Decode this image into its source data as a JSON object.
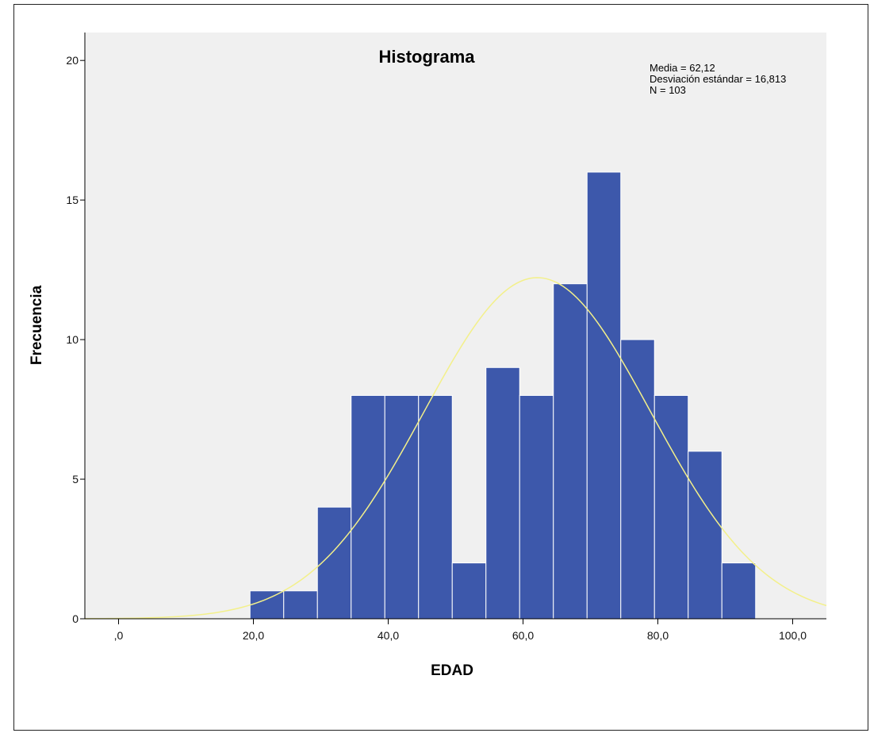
{
  "chart_data": {
    "type": "bar",
    "subtype": "histogram",
    "title": "Histograma",
    "xlabel": "EDAD",
    "ylabel": "Frecuencia",
    "xlim": [
      -5,
      105
    ],
    "ylim": [
      0,
      21
    ],
    "x_ticks": [
      0,
      20,
      40,
      60,
      80,
      100
    ],
    "x_tick_labels": [
      ",0",
      "20,0",
      "40,0",
      "60,0",
      "80,0",
      "100,0"
    ],
    "y_ticks": [
      0,
      5,
      10,
      15,
      20
    ],
    "y_tick_labels": [
      "0",
      "5",
      "10",
      "15",
      "20"
    ],
    "bins": [
      {
        "start": 19.5,
        "end": 24.5,
        "count": 1
      },
      {
        "start": 24.5,
        "end": 29.5,
        "count": 1
      },
      {
        "start": 29.5,
        "end": 34.5,
        "count": 4
      },
      {
        "start": 34.5,
        "end": 39.5,
        "count": 8
      },
      {
        "start": 39.5,
        "end": 44.5,
        "count": 8
      },
      {
        "start": 44.5,
        "end": 49.5,
        "count": 8
      },
      {
        "start": 49.5,
        "end": 54.5,
        "count": 2
      },
      {
        "start": 54.5,
        "end": 59.5,
        "count": 9
      },
      {
        "start": 59.5,
        "end": 64.5,
        "count": 8
      },
      {
        "start": 64.5,
        "end": 69.5,
        "count": 12
      },
      {
        "start": 69.5,
        "end": 74.5,
        "count": 16
      },
      {
        "start": 74.5,
        "end": 79.5,
        "count": 10
      },
      {
        "start": 79.5,
        "end": 84.5,
        "count": 8
      },
      {
        "start": 84.5,
        "end": 89.5,
        "count": 6
      },
      {
        "start": 89.5,
        "end": 94.5,
        "count": 2
      }
    ],
    "normal_curve": {
      "mean": 62.12,
      "std": 16.813,
      "n": 103,
      "bin_width": 5,
      "color": "#f3f08a"
    },
    "stats_lines": [
      "Media = 62,12",
      "Desviación estándar = 16,813",
      "N = 103"
    ],
    "bar_color": "#3d58ab",
    "bar_edge_color": "#ffffff",
    "plot_background": "#f0f0f0",
    "grid": false
  }
}
